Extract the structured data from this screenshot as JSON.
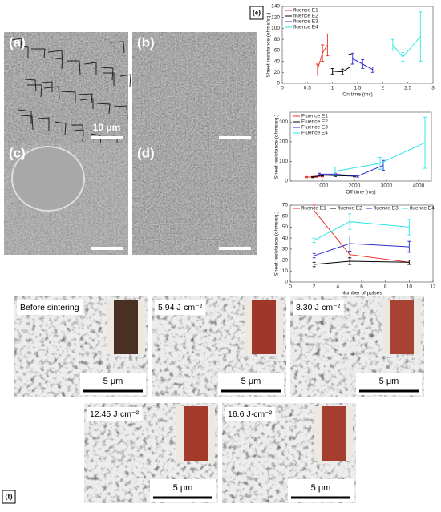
{
  "chart_data": [
    {
      "type": "line",
      "xlabel": "On time (ms)",
      "ylabel": "Sheet resistance (ohms/sq.)",
      "xlim": [
        0,
        3
      ],
      "xticks": [
        0,
        0.5,
        1,
        1.5,
        2,
        2.5,
        3
      ],
      "ylim": [
        0,
        140
      ],
      "yticks": [
        0,
        20,
        40,
        60,
        80,
        100,
        120,
        140
      ],
      "legend": "upper left",
      "series": [
        {
          "name": "fluence E1",
          "color": "#e8312a",
          "x": [
            0.7,
            0.8,
            0.9
          ],
          "values": [
            25,
            55,
            70
          ],
          "errors": [
            10,
            15,
            20
          ]
        },
        {
          "name": "fluence E2",
          "color": "#000000",
          "x": [
            1.0,
            1.2,
            1.35
          ],
          "values": [
            22,
            21,
            30
          ],
          "errors": [
            5,
            5,
            22
          ]
        },
        {
          "name": "fluence E3",
          "color": "#2b2bd0",
          "x": [
            1.4,
            1.6,
            1.8
          ],
          "values": [
            45,
            35,
            25
          ],
          "errors": [
            10,
            8,
            5
          ]
        },
        {
          "name": "fluence E4",
          "color": "#2ee6e6",
          "x": [
            2.2,
            2.4,
            2.75
          ],
          "values": [
            70,
            48,
            85
          ],
          "errors": [
            10,
            8,
            45
          ]
        }
      ]
    },
    {
      "type": "line",
      "xlabel": "Off time (ms)",
      "ylabel": "Sheet resistance (ohms/sq.)",
      "xlim": [
        0,
        4400
      ],
      "xticks": [
        1000,
        2000,
        3000,
        4000
      ],
      "ylim": [
        0,
        350
      ],
      "yticks": [
        0,
        100,
        200,
        300
      ],
      "legend": "upper left",
      "series": [
        {
          "name": "Fluence E1",
          "color": "#e8312a",
          "x": [
            500,
            800,
            1000
          ],
          "values": [
            20,
            22,
            25
          ],
          "errors": [
            3,
            3,
            4
          ]
        },
        {
          "name": "Fluence E2",
          "color": "#000000",
          "x": [
            700,
            1000,
            1400,
            2000
          ],
          "values": [
            20,
            30,
            28,
            25
          ],
          "errors": [
            3,
            5,
            5,
            4
          ]
        },
        {
          "name": "Fluence E3",
          "color": "#2b2bd0",
          "x": [
            900,
            1400,
            2100,
            2900
          ],
          "values": [
            35,
            35,
            25,
            80
          ],
          "errors": [
            5,
            5,
            5,
            25
          ]
        },
        {
          "name": "Fluence E4",
          "color": "#2ee6e6",
          "x": [
            1400,
            2800,
            4200
          ],
          "values": [
            50,
            90,
            195
          ],
          "errors": [
            20,
            30,
            130
          ]
        }
      ]
    },
    {
      "type": "line",
      "xlabel": "Number of pulses",
      "ylabel": "Sheet resistance (ohms/sq.)",
      "xlim": [
        0,
        12
      ],
      "xticks": [
        0,
        2,
        4,
        6,
        8,
        10,
        12
      ],
      "ylim": [
        0,
        70
      ],
      "yticks": [
        0,
        10,
        20,
        30,
        40,
        50,
        60,
        70
      ],
      "legend": "top",
      "series": [
        {
          "name": "fluence E1",
          "color": "#e8312a",
          "x": [
            2,
            5,
            10
          ],
          "values": [
            65,
            25,
            18
          ],
          "errors": [
            5,
            3,
            2
          ]
        },
        {
          "name": "fluence E2",
          "color": "#000000",
          "x": [
            2,
            5,
            10
          ],
          "values": [
            16,
            19,
            18
          ],
          "errors": [
            2,
            3,
            2
          ]
        },
        {
          "name": "fluence E3",
          "color": "#2b2bd0",
          "x": [
            2,
            5,
            10
          ],
          "values": [
            24,
            35,
            32
          ],
          "errors": [
            2,
            7,
            5
          ]
        },
        {
          "name": "fluence E4",
          "color": "#2ee6e6",
          "x": [
            2,
            5,
            10
          ],
          "values": [
            38,
            55,
            50
          ],
          "errors": [
            2,
            7,
            7
          ]
        }
      ]
    }
  ],
  "sem_panels": {
    "labels": [
      "(a)",
      "(b)",
      "(c)",
      "(d)"
    ],
    "scale_label": "10 μm"
  },
  "label_e": "(e)",
  "label_f": "(f)",
  "sintering_images": [
    {
      "caption": "Before sintering",
      "scale": "5 μm"
    },
    {
      "caption": "5.94 J·cm⁻²",
      "scale": "5 μm"
    },
    {
      "caption": "8.30 J·cm⁻²",
      "scale": "5 μm"
    },
    {
      "caption": "12.45 J·cm⁻²",
      "scale": "5 μm"
    },
    {
      "caption": "16.6 J·cm⁻²",
      "scale": "5 μm"
    }
  ]
}
